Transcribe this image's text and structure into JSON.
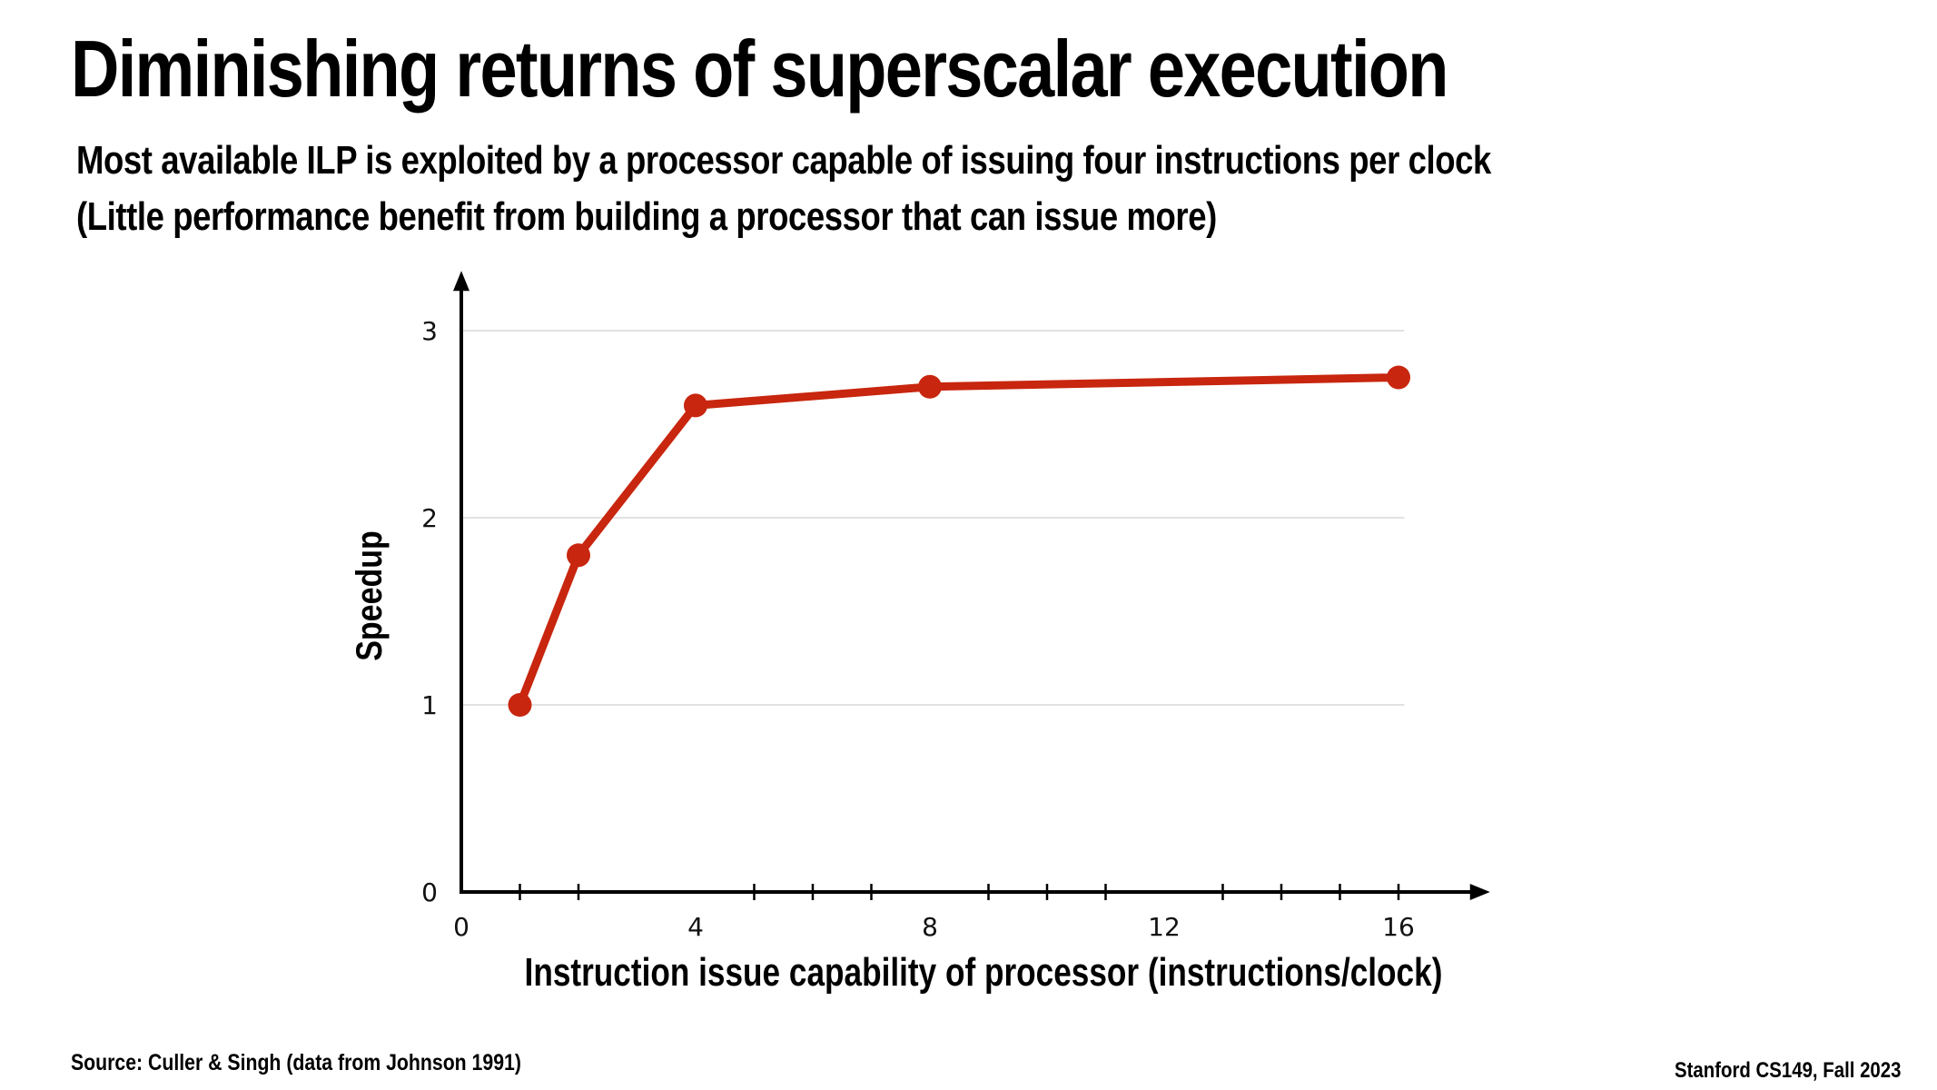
{
  "slide": {
    "title": "Diminishing returns of superscalar execution",
    "subtitle_line1": "Most available ILP is exploited by a processor capable of issuing four instructions per clock",
    "subtitle_line2": "(Little performance benefit from building a processor that can issue more)",
    "source": "Source: Culler & Singh (data from Johnson 1991)",
    "credit": "Stanford CS149, Fall 2023"
  },
  "chart_data": {
    "type": "line",
    "title": "",
    "xlabel": "Instruction issue capability of processor (instructions/clock)",
    "ylabel": "Speedup",
    "x": [
      1,
      2,
      4,
      8,
      16
    ],
    "series": [
      {
        "values": [
          1.0,
          1.8,
          2.6,
          2.7,
          2.75
        ]
      }
    ],
    "xlim": [
      0,
      17.5
    ],
    "ylim": [
      0,
      3.3
    ],
    "xticks": [
      0,
      4,
      8,
      12,
      16
    ],
    "xminor": [
      1,
      2,
      5,
      6,
      7,
      9,
      10,
      11,
      13,
      14,
      15,
      16
    ],
    "yticks": [
      0,
      1,
      2,
      3
    ],
    "ytick_labels": [
      "0",
      "1",
      "2",
      "3"
    ],
    "grid": true,
    "series_color": "#c8260f",
    "axis_color": "#000000",
    "grid_color": "#d9d9d9"
  }
}
